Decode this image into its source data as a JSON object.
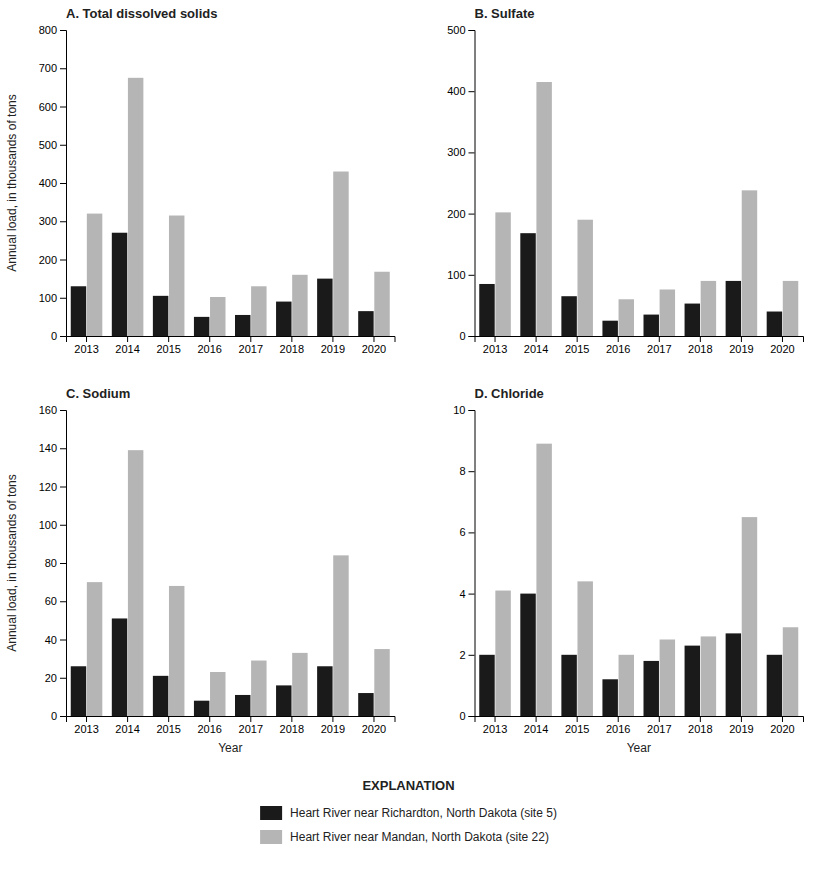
{
  "chart_data": [
    {
      "type": "bar",
      "title": "A. Total dissolved solids",
      "categories": [
        "2013",
        "2014",
        "2015",
        "2016",
        "2017",
        "2018",
        "2019",
        "2020"
      ],
      "series": [
        {
          "name": "Heart River near Richardton, North Dakota (site 5)",
          "color": "#1a1a1a",
          "values": [
            130,
            270,
            105,
            50,
            55,
            90,
            150,
            65
          ]
        },
        {
          "name": "Heart River near Mandan, North Dakota (site 22)",
          "color": "#b5b5b5",
          "values": [
            320,
            675,
            315,
            102,
            130,
            160,
            430,
            168
          ]
        }
      ],
      "ylabel": "Annual load, in thousands of tons",
      "ylim": [
        0,
        800
      ],
      "yticks": [
        0,
        100,
        200,
        300,
        400,
        500,
        600,
        700,
        800
      ],
      "grid": false,
      "legend": "bottom",
      "annotations": [
        "EXPLANATION"
      ]
    },
    {
      "type": "bar",
      "title": "B. Sulfate",
      "categories": [
        "2013",
        "2014",
        "2015",
        "2016",
        "2017",
        "2018",
        "2019",
        "2020"
      ],
      "series": [
        {
          "name": "Heart River near Richardton, North Dakota (site 5)",
          "color": "#1a1a1a",
          "values": [
            85,
            168,
            65,
            25,
            35,
            53,
            90,
            40
          ]
        },
        {
          "name": "Heart River near Mandan, North Dakota (site 22)",
          "color": "#b5b5b5",
          "values": [
            202,
            415,
            190,
            60,
            76,
            90,
            238,
            90
          ]
        }
      ],
      "ylim": [
        0,
        500
      ],
      "yticks": [
        0,
        100,
        200,
        300,
        400,
        500
      ],
      "grid": false
    },
    {
      "type": "bar",
      "title": "C. Sodium",
      "categories": [
        "2013",
        "2014",
        "2015",
        "2016",
        "2017",
        "2018",
        "2019",
        "2020"
      ],
      "series": [
        {
          "name": "Heart River near Richardton, North Dakota (site 5)",
          "color": "#1a1a1a",
          "values": [
            26,
            51,
            21,
            8,
            11,
            16,
            26,
            12
          ]
        },
        {
          "name": "Heart River near Mandan, North Dakota (site 22)",
          "color": "#b5b5b5",
          "values": [
            70,
            139,
            68,
            23,
            29,
            33,
            84,
            35
          ]
        }
      ],
      "xlabel": "Year",
      "ylabel": "Annual load, in thousands of tons",
      "ylim": [
        0,
        160
      ],
      "yticks": [
        0,
        20,
        40,
        60,
        80,
        100,
        120,
        140,
        160
      ],
      "grid": false
    },
    {
      "type": "bar",
      "title": "D. Chloride",
      "categories": [
        "2013",
        "2014",
        "2015",
        "2016",
        "2017",
        "2018",
        "2019",
        "2020"
      ],
      "series": [
        {
          "name": "Heart River near Richardton, North Dakota (site 5)",
          "color": "#1a1a1a",
          "values": [
            2.0,
            4.0,
            2.0,
            1.2,
            1.8,
            2.3,
            2.7,
            2.0
          ]
        },
        {
          "name": "Heart River near Mandan, North Dakota (site 22)",
          "color": "#b5b5b5",
          "values": [
            4.1,
            8.9,
            4.4,
            2.0,
            2.5,
            2.6,
            6.5,
            2.9
          ]
        }
      ],
      "xlabel": "Year",
      "ylim": [
        0,
        10
      ],
      "yticks": [
        0,
        2,
        4,
        6,
        8,
        10
      ],
      "grid": false
    }
  ]
}
